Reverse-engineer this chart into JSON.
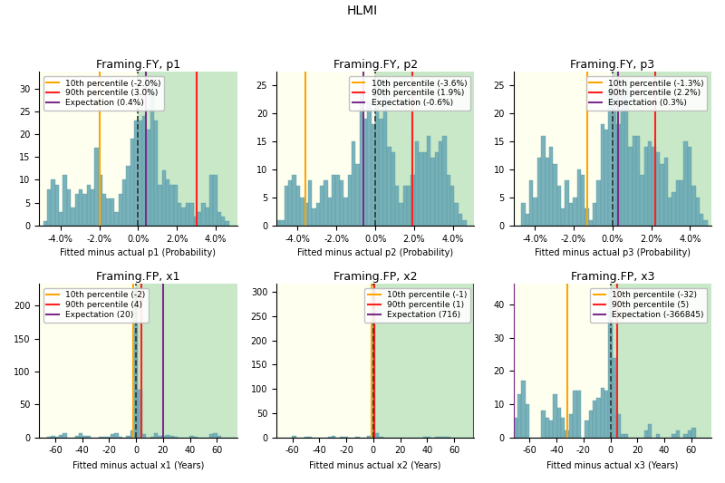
{
  "title": "HLMI",
  "subplots": [
    {
      "title": "Framing.FY, p1",
      "xlabel": "Fitted minus actual p1 (Probability)",
      "p10": -0.02,
      "p90": 0.03,
      "expectation": 0.004,
      "p10_label": "10th percentile (-2.0%)",
      "p90_label": "90th percentile (3.0%)",
      "exp_label": "Expectation (0.4%)",
      "xlim": [
        -0.051,
        0.051
      ],
      "xticks": [
        -0.04,
        -0.02,
        0.0,
        0.02,
        0.04
      ],
      "xticklabels": [
        "-4.0%",
        "-2.0%",
        "0.0%",
        "2.0%",
        "4.0%"
      ],
      "type": "probability",
      "legend_loc": "upper left",
      "exp_clamped": 0.004
    },
    {
      "title": "Framing.FY, p2",
      "xlabel": "Fitted minus actual p2 (Probability)",
      "p10": -0.036,
      "p90": 0.019,
      "expectation": -0.006,
      "p10_label": "10th percentile (-3.6%)",
      "p90_label": "90th percentile (1.9%)",
      "exp_label": "Expectation (-0.6%)",
      "xlim": [
        -0.051,
        0.051
      ],
      "xticks": [
        -0.04,
        -0.02,
        0.0,
        0.02,
        0.04
      ],
      "xticklabels": [
        "-4.0%",
        "-2.0%",
        "0.0%",
        "2.0%",
        "4.0%"
      ],
      "type": "probability",
      "legend_loc": "upper right",
      "exp_clamped": -0.006
    },
    {
      "title": "Framing.FY, p3",
      "xlabel": "Fitted minus actual p3 (Probability)",
      "p10": -0.013,
      "p90": 0.022,
      "expectation": 0.003,
      "p10_label": "10th percentile (-1.3%)",
      "p90_label": "90th percentile (2.2%)",
      "exp_label": "Expectation (0.3%)",
      "xlim": [
        -0.051,
        0.051
      ],
      "xticks": [
        -0.04,
        -0.02,
        0.0,
        0.02,
        0.04
      ],
      "xticklabels": [
        "-4.0%",
        "-2.0%",
        "0.0%",
        "2.0%",
        "4.0%"
      ],
      "type": "probability",
      "legend_loc": "upper right",
      "exp_clamped": 0.003
    },
    {
      "title": "Framing.FP, x1",
      "xlabel": "Fitted minus actual x1 (Years)",
      "p10": -2,
      "p90": 4,
      "expectation": 20,
      "p10_label": "10th percentile (-2)",
      "p90_label": "90th percentile (4)",
      "exp_label": "Expectation (20)",
      "xlim": [
        -72,
        75
      ],
      "xticks": [
        -60,
        -40,
        -20,
        0,
        20,
        40,
        60
      ],
      "xticklabels": [
        "-60",
        "-40",
        "-20",
        "0",
        "20",
        "40",
        "60"
      ],
      "type": "years_x1",
      "legend_loc": "upper left",
      "exp_clamped": 20
    },
    {
      "title": "Framing.FP, x2",
      "xlabel": "Fitted minus actual x2 (Years)",
      "p10": -1,
      "p90": 1,
      "expectation": 716,
      "p10_label": "10th percentile (-1)",
      "p90_label": "90th percentile (1)",
      "exp_label": "Expectation (716)",
      "xlim": [
        -72,
        75
      ],
      "xticks": [
        -60,
        -40,
        -20,
        0,
        20,
        40,
        60
      ],
      "xticklabels": [
        "-60",
        "-40",
        "-20",
        "0",
        "20",
        "40",
        "60"
      ],
      "type": "years_x2",
      "legend_loc": "upper right",
      "exp_clamped": 75
    },
    {
      "title": "Framing.FP, x3",
      "xlabel": "Fitted minus actual x3 (Years)",
      "p10": -32,
      "p90": 5,
      "expectation": -366845,
      "p10_label": "10th percentile (-32)",
      "p90_label": "90th percentile (5)",
      "exp_label": "Expectation (-366845)",
      "xlim": [
        -72,
        75
      ],
      "xticks": [
        -60,
        -40,
        -20,
        0,
        20,
        40,
        60
      ],
      "xticklabels": [
        "-60",
        "-40",
        "-20",
        "0",
        "20",
        "40",
        "60"
      ],
      "type": "years_x3",
      "legend_loc": "upper right",
      "exp_clamped": -72
    }
  ],
  "bar_color": "#6baab5",
  "bar_edgecolor": "#5a9aa5",
  "bg_left_color": "#fffff0",
  "bg_right_color": "#c8e8c8",
  "p10_color": "#ffa500",
  "p90_color": "#ff2020",
  "exp_color": "#7b2d8b",
  "zero_color": "#333333",
  "legend_fontsize": 6.5,
  "title_fontsize": 9,
  "main_title_fontsize": 10,
  "tick_fontsize": 7,
  "xlabel_fontsize": 7,
  "n_bins": 50
}
